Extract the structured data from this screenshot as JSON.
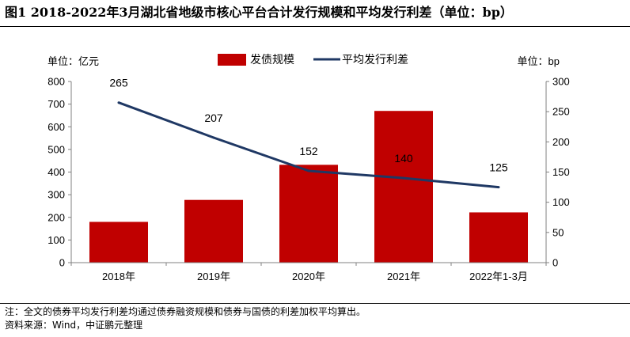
{
  "title": "图1  2018-2022年3月湖北省地级市核心平台合计发行规模和平均发行利差（单位：bp）",
  "footnote": "注：全文的债券平均发行利差均通过债券融资规模和债券与国债的利差加权平均算出。",
  "source": "资料来源：Wind，中证鹏元整理",
  "chart_data": {
    "type": "bar+line",
    "categories": [
      "2018年",
      "2019年",
      "2020年",
      "2021年",
      "2022年1-3月"
    ],
    "series": [
      {
        "name": "发债规模",
        "type": "bar",
        "axis": "left",
        "values": [
          180,
          277,
          432,
          670,
          222
        ],
        "color": "#c00000"
      },
      {
        "name": "平均发行利差",
        "type": "line",
        "axis": "right",
        "values": [
          265,
          207,
          152,
          140,
          125
        ],
        "color": "#1f3864",
        "labels": [
          "265",
          "207",
          "152",
          "140",
          "125"
        ]
      }
    ],
    "left_axis": {
      "unit": "单位：亿元",
      "ylim": [
        0,
        800
      ],
      "ticks": [
        "0",
        "100",
        "200",
        "300",
        "400",
        "500",
        "600",
        "700",
        "800"
      ]
    },
    "right_axis": {
      "unit": "单位：bp",
      "ylim": [
        0,
        300
      ],
      "ticks": [
        "0",
        "50",
        "100",
        "150",
        "200",
        "250",
        "300"
      ]
    },
    "legend_position": "top-center",
    "grid": false
  }
}
